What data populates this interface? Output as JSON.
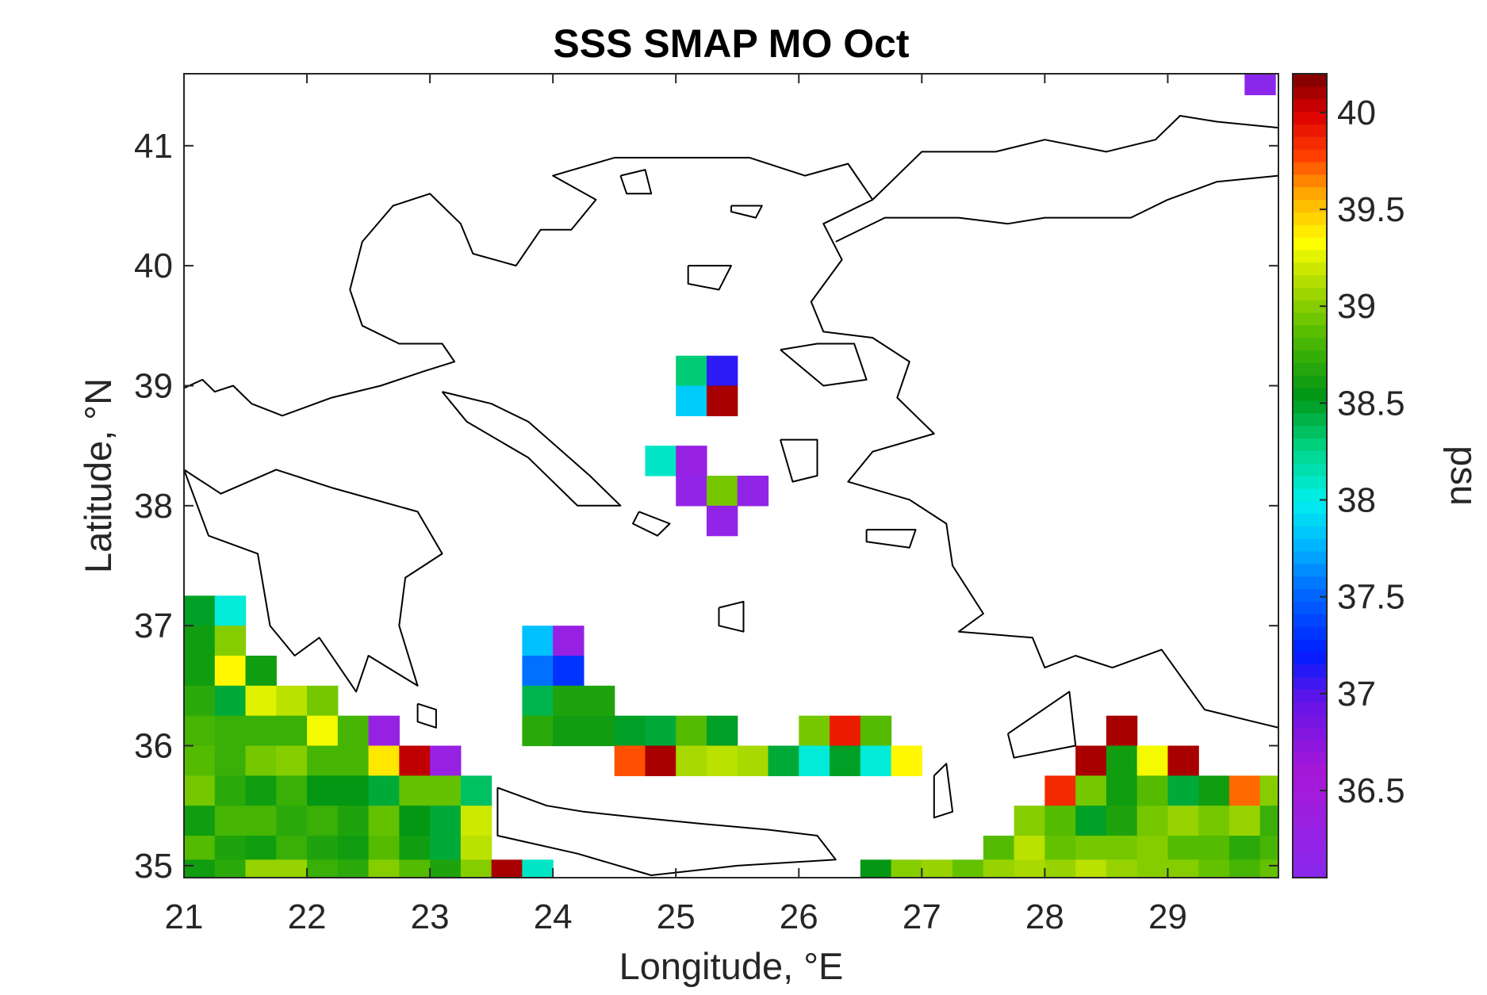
{
  "chart_data": {
    "type": "heatmap",
    "title": "SSS SMAP MO Oct",
    "xlabel": "Longitude, °E",
    "ylabel": "Latitude, °N",
    "xlim": [
      21.0,
      29.9
    ],
    "ylim": [
      34.9,
      41.6
    ],
    "xticks": [
      21,
      22,
      23,
      24,
      25,
      26,
      27,
      28,
      29
    ],
    "yticks": [
      35,
      36,
      37,
      38,
      39,
      40,
      41
    ],
    "colorbar": {
      "label": "psu",
      "range": [
        36.05,
        40.2
      ],
      "ticks": [
        "36.5",
        "37",
        "37.5",
        "38",
        "38.5",
        "39",
        "39.5",
        "40"
      ],
      "tick_values": [
        36.5,
        37,
        37.5,
        38,
        38.5,
        39,
        39.5,
        40
      ],
      "colormap": "jet-like"
    },
    "cell_size_deg": 0.25,
    "cells": [
      [
        29.75,
        41.55,
        36.1
      ],
      [
        25.125,
        39.125,
        38.3
      ],
      [
        25.375,
        39.125,
        37.1
      ],
      [
        25.125,
        38.875,
        37.85
      ],
      [
        25.375,
        38.875,
        40.1
      ],
      [
        24.875,
        38.375,
        38.1
      ],
      [
        25.125,
        38.375,
        36.3
      ],
      [
        25.125,
        38.125,
        36.2
      ],
      [
        25.375,
        38.125,
        38.95
      ],
      [
        25.625,
        38.125,
        36.2
      ],
      [
        25.375,
        37.875,
        36.2
      ],
      [
        23.875,
        36.875,
        37.8
      ],
      [
        24.125,
        36.875,
        36.3
      ],
      [
        23.875,
        36.625,
        37.55
      ],
      [
        24.125,
        36.625,
        37.3
      ],
      [
        23.875,
        36.375,
        38.4
      ],
      [
        24.125,
        36.375,
        38.65
      ],
      [
        24.375,
        36.375,
        38.65
      ],
      [
        23.875,
        36.125,
        38.7
      ],
      [
        24.125,
        36.125,
        38.6
      ],
      [
        24.375,
        36.125,
        38.6
      ],
      [
        24.625,
        36.125,
        38.5
      ],
      [
        24.875,
        36.125,
        38.45
      ],
      [
        25.125,
        36.125,
        38.85
      ],
      [
        25.375,
        36.125,
        38.5
      ],
      [
        26.125,
        36.125,
        38.95
      ],
      [
        26.375,
        36.125,
        39.9
      ],
      [
        26.625,
        36.125,
        38.85
      ],
      [
        24.625,
        35.875,
        39.75
      ],
      [
        24.875,
        35.875,
        40.1
      ],
      [
        25.125,
        35.875,
        39.1
      ],
      [
        25.375,
        35.875,
        39.15
      ],
      [
        25.625,
        35.875,
        39.1
      ],
      [
        25.875,
        35.875,
        38.45
      ],
      [
        26.125,
        35.875,
        38.05
      ],
      [
        26.375,
        35.875,
        38.5
      ],
      [
        26.625,
        35.875,
        38.05
      ],
      [
        26.875,
        35.875,
        39.35
      ],
      [
        21.125,
        37.125,
        38.5
      ],
      [
        21.375,
        37.125,
        38.05
      ],
      [
        21.125,
        36.875,
        38.6
      ],
      [
        21.375,
        36.875,
        39.0
      ],
      [
        21.125,
        36.625,
        38.6
      ],
      [
        21.375,
        36.625,
        39.35
      ],
      [
        21.625,
        36.625,
        38.6
      ],
      [
        21.125,
        36.375,
        38.7
      ],
      [
        21.375,
        36.375,
        38.45
      ],
      [
        21.625,
        36.375,
        39.25
      ],
      [
        21.875,
        36.375,
        39.15
      ],
      [
        22.125,
        36.375,
        38.95
      ],
      [
        21.125,
        36.125,
        38.8
      ],
      [
        21.375,
        36.125,
        38.75
      ],
      [
        21.625,
        36.125,
        38.75
      ],
      [
        21.875,
        36.125,
        38.75
      ],
      [
        22.125,
        36.125,
        39.3
      ],
      [
        22.375,
        36.125,
        38.8
      ],
      [
        22.625,
        36.125,
        36.3
      ],
      [
        21.125,
        35.875,
        38.85
      ],
      [
        21.375,
        35.875,
        38.75
      ],
      [
        21.625,
        35.875,
        38.95
      ],
      [
        21.875,
        35.875,
        39.0
      ],
      [
        22.125,
        35.875,
        38.8
      ],
      [
        22.375,
        35.875,
        38.8
      ],
      [
        22.625,
        35.875,
        39.4
      ],
      [
        22.875,
        35.875,
        40.05
      ],
      [
        23.125,
        35.875,
        36.3
      ],
      [
        21.125,
        35.625,
        38.95
      ],
      [
        21.375,
        35.625,
        38.7
      ],
      [
        21.625,
        35.625,
        38.6
      ],
      [
        21.875,
        35.625,
        38.75
      ],
      [
        22.125,
        35.625,
        38.55
      ],
      [
        22.375,
        35.625,
        38.55
      ],
      [
        22.625,
        35.625,
        38.45
      ],
      [
        22.875,
        35.625,
        38.9
      ],
      [
        23.125,
        35.625,
        38.9
      ],
      [
        23.375,
        35.625,
        38.35
      ],
      [
        21.125,
        35.375,
        38.6
      ],
      [
        21.375,
        35.375,
        38.8
      ],
      [
        21.625,
        35.375,
        38.8
      ],
      [
        21.875,
        35.375,
        38.7
      ],
      [
        22.125,
        35.375,
        38.75
      ],
      [
        22.375,
        35.375,
        38.65
      ],
      [
        22.625,
        35.375,
        38.9
      ],
      [
        22.875,
        35.375,
        38.55
      ],
      [
        23.125,
        35.375,
        38.45
      ],
      [
        23.375,
        35.375,
        39.2
      ],
      [
        21.125,
        35.125,
        38.85
      ],
      [
        21.375,
        35.125,
        38.65
      ],
      [
        21.625,
        35.125,
        38.6
      ],
      [
        21.875,
        35.125,
        38.75
      ],
      [
        22.125,
        35.125,
        38.65
      ],
      [
        22.375,
        35.125,
        38.6
      ],
      [
        22.625,
        35.125,
        38.85
      ],
      [
        22.875,
        35.125,
        38.6
      ],
      [
        23.125,
        35.125,
        38.45
      ],
      [
        23.375,
        35.125,
        39.15
      ],
      [
        21.125,
        34.925,
        38.6
      ],
      [
        21.375,
        34.925,
        38.7
      ],
      [
        21.625,
        34.925,
        39.05
      ],
      [
        21.875,
        34.925,
        39.05
      ],
      [
        22.125,
        34.925,
        38.75
      ],
      [
        22.375,
        34.925,
        38.7
      ],
      [
        22.625,
        34.925,
        39.0
      ],
      [
        22.875,
        34.925,
        38.85
      ],
      [
        23.125,
        34.925,
        38.65
      ],
      [
        23.375,
        34.925,
        39.0
      ],
      [
        23.625,
        34.925,
        40.1
      ],
      [
        23.875,
        34.925,
        38.1
      ],
      [
        28.625,
        36.125,
        40.1
      ],
      [
        28.375,
        35.875,
        40.1
      ],
      [
        28.625,
        35.875,
        38.6
      ],
      [
        28.875,
        35.875,
        39.3
      ],
      [
        29.125,
        35.875,
        40.1
      ],
      [
        28.125,
        35.625,
        39.85
      ],
      [
        28.375,
        35.625,
        38.95
      ],
      [
        28.625,
        35.625,
        38.6
      ],
      [
        28.875,
        35.625,
        38.85
      ],
      [
        29.125,
        35.625,
        38.45
      ],
      [
        29.375,
        35.625,
        38.6
      ],
      [
        29.625,
        35.625,
        39.7
      ],
      [
        29.875,
        35.625,
        39.0
      ],
      [
        27.875,
        35.375,
        39.0
      ],
      [
        28.125,
        35.375,
        38.85
      ],
      [
        28.375,
        35.375,
        38.5
      ],
      [
        28.625,
        35.375,
        38.65
      ],
      [
        28.875,
        35.375,
        38.95
      ],
      [
        29.125,
        35.375,
        39.05
      ],
      [
        29.375,
        35.375,
        38.95
      ],
      [
        29.625,
        35.375,
        39.05
      ],
      [
        29.875,
        35.375,
        38.75
      ],
      [
        27.625,
        35.125,
        38.85
      ],
      [
        27.875,
        35.125,
        39.15
      ],
      [
        28.125,
        35.125,
        38.9
      ],
      [
        28.375,
        35.125,
        38.95
      ],
      [
        28.625,
        35.125,
        38.95
      ],
      [
        28.875,
        35.125,
        39.0
      ],
      [
        29.125,
        35.125,
        38.85
      ],
      [
        29.375,
        35.125,
        38.85
      ],
      [
        29.625,
        35.125,
        38.7
      ],
      [
        29.875,
        35.125,
        38.8
      ],
      [
        26.625,
        34.925,
        38.55
      ],
      [
        26.875,
        34.925,
        39.0
      ],
      [
        27.125,
        34.925,
        39.05
      ],
      [
        27.375,
        34.925,
        38.9
      ],
      [
        27.625,
        34.925,
        39.05
      ],
      [
        27.875,
        34.925,
        39.1
      ],
      [
        28.125,
        34.925,
        39.05
      ],
      [
        28.375,
        34.925,
        39.15
      ],
      [
        28.625,
        34.925,
        39.05
      ],
      [
        28.875,
        34.925,
        39.0
      ],
      [
        29.125,
        34.925,
        39.0
      ],
      [
        29.375,
        34.925,
        38.9
      ],
      [
        29.625,
        34.925,
        38.8
      ],
      [
        29.875,
        34.925,
        38.9
      ]
    ],
    "coastline": {
      "mainland_greece": [
        [
          21.0,
          38.98
        ],
        [
          21.15,
          39.05
        ],
        [
          21.25,
          38.95
        ],
        [
          21.4,
          39.0
        ],
        [
          21.55,
          38.85
        ],
        [
          21.8,
          38.75
        ],
        [
          22.2,
          38.9
        ],
        [
          22.6,
          39.0
        ],
        [
          22.95,
          39.12
        ],
        [
          23.2,
          39.2
        ],
        [
          23.1,
          39.35
        ],
        [
          22.75,
          39.35
        ],
        [
          22.45,
          39.5
        ],
        [
          22.35,
          39.8
        ],
        [
          22.45,
          40.2
        ],
        [
          22.7,
          40.5
        ],
        [
          23.0,
          40.6
        ],
        [
          23.25,
          40.35
        ],
        [
          23.35,
          40.1
        ],
        [
          23.7,
          40.0
        ],
        [
          23.9,
          40.3
        ],
        [
          24.15,
          40.3
        ],
        [
          24.35,
          40.55
        ],
        [
          24.0,
          40.75
        ],
        [
          24.5,
          40.9
        ],
        [
          25.0,
          40.9
        ],
        [
          25.6,
          40.9
        ],
        [
          26.05,
          40.75
        ],
        [
          26.4,
          40.85
        ],
        [
          26.6,
          40.55
        ],
        [
          26.2,
          40.35
        ],
        [
          26.35,
          40.05
        ],
        [
          26.1,
          39.7
        ],
        [
          26.2,
          39.45
        ],
        [
          26.6,
          39.4
        ],
        [
          26.9,
          39.2
        ],
        [
          26.8,
          38.9
        ],
        [
          27.1,
          38.6
        ],
        [
          26.6,
          38.45
        ],
        [
          26.4,
          38.2
        ],
        [
          26.9,
          38.05
        ],
        [
          27.2,
          37.85
        ],
        [
          27.25,
          37.5
        ],
        [
          27.5,
          37.1
        ],
        [
          27.3,
          36.95
        ],
        [
          27.9,
          36.9
        ],
        [
          28.0,
          36.65
        ],
        [
          28.25,
          36.75
        ],
        [
          28.55,
          36.65
        ],
        [
          28.95,
          36.8
        ],
        [
          29.3,
          36.3
        ],
        [
          29.7,
          36.2
        ],
        [
          29.9,
          36.15
        ]
      ],
      "north_marmara": [
        [
          26.6,
          40.55
        ],
        [
          27.0,
          40.95
        ],
        [
          27.6,
          40.95
        ],
        [
          28.0,
          41.05
        ],
        [
          28.5,
          40.95
        ],
        [
          28.9,
          41.05
        ],
        [
          29.1,
          41.25
        ],
        [
          29.4,
          41.2
        ],
        [
          29.9,
          41.15
        ]
      ],
      "south_marmara": [
        [
          26.3,
          40.2
        ],
        [
          26.7,
          40.4
        ],
        [
          27.3,
          40.4
        ],
        [
          27.7,
          40.35
        ],
        [
          28.0,
          40.4
        ],
        [
          28.7,
          40.4
        ],
        [
          29.0,
          40.55
        ],
        [
          29.4,
          40.7
        ],
        [
          29.9,
          40.75
        ]
      ],
      "peloponnese": [
        [
          21.0,
          38.3
        ],
        [
          21.3,
          38.1
        ],
        [
          21.75,
          38.3
        ],
        [
          22.2,
          38.15
        ],
        [
          22.9,
          37.95
        ],
        [
          23.1,
          37.6
        ],
        [
          22.8,
          37.4
        ],
        [
          22.75,
          37.0
        ],
        [
          22.9,
          36.5
        ],
        [
          22.5,
          36.75
        ],
        [
          22.4,
          36.45
        ],
        [
          22.1,
          36.9
        ],
        [
          21.9,
          36.75
        ],
        [
          21.7,
          37.0
        ],
        [
          21.6,
          37.6
        ],
        [
          21.2,
          37.75
        ],
        [
          21.0,
          38.3
        ]
      ],
      "crete": [
        [
          23.55,
          35.65
        ],
        [
          23.95,
          35.5
        ],
        [
          24.25,
          35.45
        ],
        [
          24.7,
          35.4
        ],
        [
          25.2,
          35.35
        ],
        [
          25.75,
          35.3
        ],
        [
          26.15,
          35.25
        ],
        [
          26.3,
          35.05
        ],
        [
          25.5,
          35.0
        ],
        [
          24.8,
          34.92
        ],
        [
          24.2,
          35.1
        ],
        [
          23.55,
          35.25
        ],
        [
          23.55,
          35.65
        ]
      ],
      "euboea": [
        [
          23.1,
          38.95
        ],
        [
          23.5,
          38.85
        ],
        [
          23.8,
          38.7
        ],
        [
          24.3,
          38.25
        ],
        [
          24.55,
          38.0
        ],
        [
          24.2,
          38.0
        ],
        [
          23.8,
          38.4
        ],
        [
          23.3,
          38.7
        ],
        [
          23.1,
          38.95
        ]
      ],
      "lesbos": [
        [
          25.85,
          39.3
        ],
        [
          26.15,
          39.35
        ],
        [
          26.45,
          39.35
        ],
        [
          26.55,
          39.05
        ],
        [
          26.2,
          39.0
        ],
        [
          25.85,
          39.3
        ]
      ],
      "chios": [
        [
          25.85,
          38.55
        ],
        [
          26.15,
          38.55
        ],
        [
          26.15,
          38.25
        ],
        [
          25.95,
          38.2
        ],
        [
          25.85,
          38.55
        ]
      ],
      "samos": [
        [
          26.55,
          37.8
        ],
        [
          26.95,
          37.8
        ],
        [
          26.9,
          37.65
        ],
        [
          26.55,
          37.7
        ],
        [
          26.55,
          37.8
        ]
      ],
      "rhodes": [
        [
          27.7,
          36.1
        ],
        [
          28.2,
          36.45
        ],
        [
          28.25,
          36.0
        ],
        [
          27.75,
          35.9
        ],
        [
          27.7,
          36.1
        ]
      ],
      "lemnos": [
        [
          25.1,
          40.0
        ],
        [
          25.45,
          40.0
        ],
        [
          25.35,
          39.8
        ],
        [
          25.1,
          39.85
        ],
        [
          25.1,
          40.0
        ]
      ],
      "thasos": [
        [
          24.55,
          40.75
        ],
        [
          24.75,
          40.8
        ],
        [
          24.8,
          40.6
        ],
        [
          24.6,
          40.6
        ],
        [
          24.55,
          40.75
        ]
      ],
      "samothrace": [
        [
          25.45,
          40.5
        ],
        [
          25.7,
          40.5
        ],
        [
          25.65,
          40.4
        ],
        [
          25.45,
          40.45
        ],
        [
          25.45,
          40.5
        ]
      ],
      "naxos": [
        [
          25.35,
          37.15
        ],
        [
          25.55,
          37.2
        ],
        [
          25.55,
          36.95
        ],
        [
          25.35,
          37.0
        ],
        [
          25.35,
          37.15
        ]
      ],
      "andros": [
        [
          24.7,
          37.95
        ],
        [
          24.95,
          37.85
        ],
        [
          24.85,
          37.75
        ],
        [
          24.65,
          37.85
        ],
        [
          24.7,
          37.95
        ]
      ],
      "karpathos": [
        [
          27.1,
          35.75
        ],
        [
          27.2,
          35.85
        ],
        [
          27.25,
          35.45
        ],
        [
          27.1,
          35.4
        ],
        [
          27.1,
          35.75
        ]
      ],
      "kythira": [
        [
          22.9,
          36.35
        ],
        [
          23.05,
          36.3
        ],
        [
          23.05,
          36.15
        ],
        [
          22.9,
          36.2
        ],
        [
          22.9,
          36.35
        ]
      ]
    }
  }
}
